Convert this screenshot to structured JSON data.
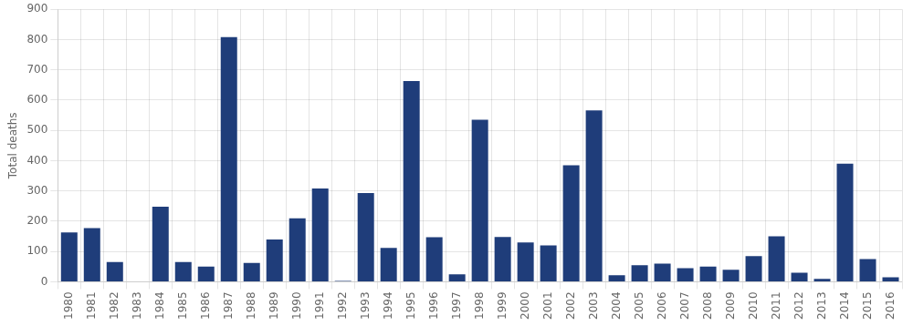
{
  "chart_data": {
    "type": "bar",
    "ylabel": "Total deaths",
    "categories": [
      "1980",
      "1981",
      "1982",
      "1983",
      "1984",
      "1985",
      "1986",
      "1987",
      "1988",
      "1989",
      "1990",
      "1991",
      "1992",
      "1993",
      "1994",
      "1995",
      "1996",
      "1997",
      "1998",
      "1999",
      "2000",
      "2001",
      "2002",
      "2003",
      "2004",
      "2005",
      "2006",
      "2007",
      "2008",
      "2009",
      "2010",
      "2011",
      "2012",
      "2013",
      "2014",
      "2015",
      "2016"
    ],
    "values": [
      163,
      177,
      65,
      0,
      248,
      65,
      50,
      808,
      62,
      140,
      210,
      308,
      3,
      293,
      112,
      663,
      147,
      25,
      535,
      148,
      130,
      120,
      385,
      566,
      22,
      55,
      60,
      45,
      50,
      40,
      85,
      150,
      30,
      10,
      390,
      75,
      15
    ],
    "color": "#1f3d7a",
    "ylim": [
      0,
      900
    ],
    "yticks": [
      0,
      100,
      200,
      300,
      400,
      500,
      600,
      700,
      800,
      900
    ],
    "grid": true
  }
}
